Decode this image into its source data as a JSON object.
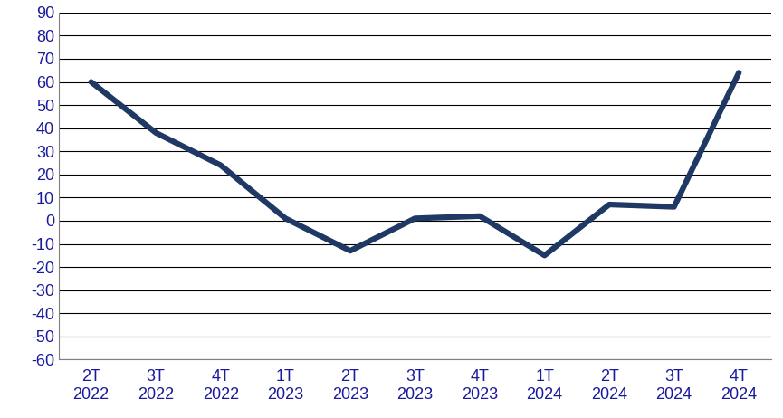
{
  "chart_data": {
    "type": "line",
    "categories": [
      "2T\n2022",
      "3T\n2022",
      "4T\n2022",
      "1T\n2023",
      "2T\n2023",
      "3T\n2023",
      "4T\n2023",
      "1T\n2024",
      "2T\n2024",
      "3T\n2024",
      "4T\n2024"
    ],
    "values": [
      60,
      38,
      24,
      1,
      -13,
      1,
      2,
      -15,
      7,
      6,
      64
    ],
    "color": "#1f3864",
    "ylim": [
      -60,
      90
    ],
    "yticks": [
      -60,
      -50,
      -40,
      -30,
      -20,
      -10,
      0,
      10,
      20,
      30,
      40,
      50,
      60,
      70,
      80,
      90
    ],
    "grid": true
  }
}
